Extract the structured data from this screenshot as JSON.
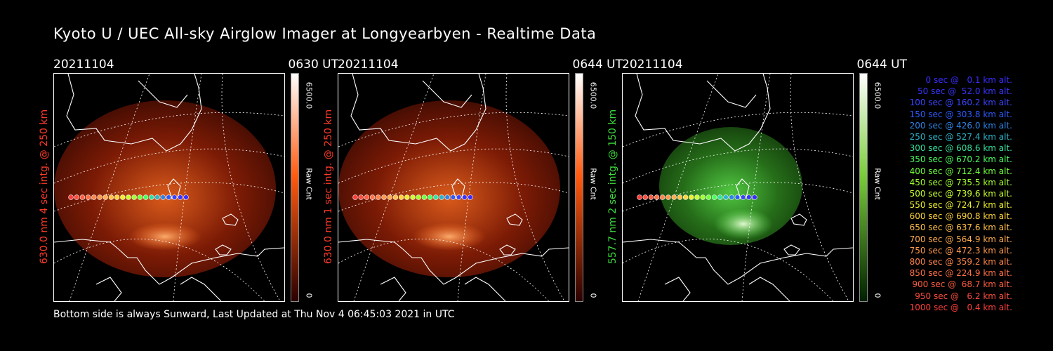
{
  "title": "Kyoto U / UEC All-sky Airglow Imager at Longyearbyen - Realtime Data",
  "footer": "Bottom side is always Sunward, Last Updated at Thu Nov  4 06:45:03 2021 in UTC",
  "panels": [
    {
      "date": "20211104",
      "time": "0630 UT",
      "label": "630.0 nm 4 sec intg. @ 250 km",
      "label_color": "#ff3a2a",
      "cbar_max": "6500.0",
      "cbar_label": "Raw Cnt",
      "cbar_min": "0",
      "emission": "red"
    },
    {
      "date": "20211104",
      "time": "0644 UT",
      "label": "630.0 nm 1 sec intg. @ 250 km",
      "label_color": "#ff3a2a",
      "cbar_max": "6500.0",
      "cbar_label": "Raw Cnt",
      "cbar_min": "0",
      "emission": "red"
    },
    {
      "date": "20211104",
      "time": "0644 UT",
      "label": "557.7 nm 2 sec intg. @ 150 km",
      "label_color": "#3cdc3c",
      "cbar_max": "6500.0",
      "cbar_label": "Raw Cnt",
      "cbar_min": "0",
      "emission": "green"
    }
  ],
  "legend": [
    {
      "text": "0 sec @   0.1 km alt.",
      "color": "#3a2cff"
    },
    {
      "text": "50 sec @  52.0 km alt.",
      "color": "#3a34ff"
    },
    {
      "text": "100 sec @ 160.2 km alt.",
      "color": "#3a44ff"
    },
    {
      "text": "150 sec @ 303.8 km alt.",
      "color": "#2c5cff"
    },
    {
      "text": "200 sec @ 426.0 km alt.",
      "color": "#2c84e8"
    },
    {
      "text": "250 sec @ 527.4 km alt.",
      "color": "#2cb4c8"
    },
    {
      "text": "300 sec @ 608.6 km alt.",
      "color": "#34e0a0"
    },
    {
      "text": "350 sec @ 670.2 km alt.",
      "color": "#48ff5c"
    },
    {
      "text": "400 sec @ 712.4 km alt.",
      "color": "#70ff3c"
    },
    {
      "text": "450 sec @ 735.5 km alt.",
      "color": "#a0ff2c"
    },
    {
      "text": "500 sec @ 739.6 km alt.",
      "color": "#c8ff2c"
    },
    {
      "text": "550 sec @ 724.7 km alt.",
      "color": "#ecf02c"
    },
    {
      "text": "600 sec @ 690.8 km alt.",
      "color": "#ffd43a"
    },
    {
      "text": "650 sec @ 637.6 km alt.",
      "color": "#ffc048"
    },
    {
      "text": "700 sec @ 564.9 km alt.",
      "color": "#ffac4c"
    },
    {
      "text": "750 sec @ 472.3 km alt.",
      "color": "#ff984c"
    },
    {
      "text": "800 sec @ 359.2 km alt.",
      "color": "#ff8448"
    },
    {
      "text": "850 sec @ 224.9 km alt.",
      "color": "#ff7044"
    },
    {
      "text": "900 sec @  68.7 km alt.",
      "color": "#ff5c40"
    },
    {
      "text": "950 sec @   6.2 km alt.",
      "color": "#ff4c3c"
    },
    {
      "text": "1000 sec @   0.4 km alt.",
      "color": "#ff3c38"
    }
  ]
}
